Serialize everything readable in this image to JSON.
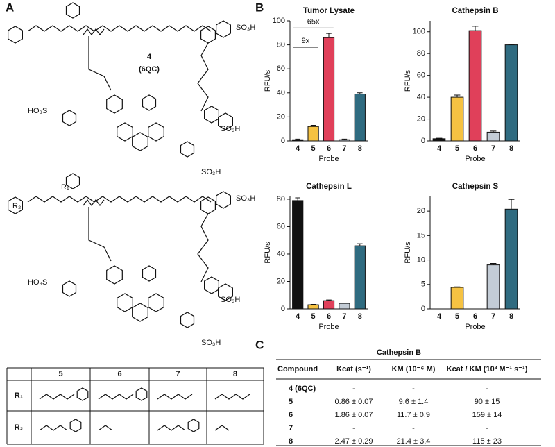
{
  "panels": {
    "a": "A",
    "b": "B",
    "c": "C"
  },
  "structures": {
    "compound": "4",
    "compound_name": "(6QC)",
    "top_labels": [
      "SO₃H",
      "SO₃H",
      "HO₃S",
      "SO₃H"
    ],
    "bottom_labels": [
      "R₂",
      "R₁",
      "SO₃H",
      "SO₃H",
      "HO₃S",
      "SO₃H"
    ]
  },
  "chart_data": [
    {
      "type": "bar",
      "title": "Tumor Lysate",
      "categories": [
        "4",
        "5",
        "6",
        "7",
        "8"
      ],
      "values": [
        1,
        12,
        86,
        1,
        39
      ],
      "errors": [
        0.5,
        1,
        3.5,
        0.5,
        1
      ],
      "colors": [
        "#111111",
        "#f5c242",
        "#e0405a",
        "#c3ccd6",
        "#2f6b80"
      ],
      "ylim": [
        0,
        100
      ],
      "yticks": [
        0,
        20,
        40,
        60,
        80,
        100
      ],
      "xlabel": "Probe",
      "ylabel": "RFU/s",
      "annotations": [
        "9x",
        "65x"
      ]
    },
    {
      "type": "bar",
      "title": "Cathepsin B",
      "categories": [
        "4",
        "5",
        "6",
        "7",
        "8"
      ],
      "values": [
        2,
        40,
        101,
        8,
        88
      ],
      "errors": [
        0.5,
        2,
        4,
        1,
        0.5
      ],
      "colors": [
        "#111111",
        "#f5c242",
        "#e0405a",
        "#c3ccd6",
        "#2f6b80"
      ],
      "ylim": [
        0,
        110
      ],
      "yticks": [
        0,
        20,
        40,
        60,
        80,
        100
      ],
      "xlabel": "Probe",
      "ylabel": "RFU/s"
    },
    {
      "type": "bar",
      "title": "Cathepsin L",
      "categories": [
        "4",
        "5",
        "6",
        "7",
        "8"
      ],
      "values": [
        79,
        3,
        6,
        4,
        46
      ],
      "errors": [
        2,
        0.3,
        0.5,
        0.3,
        1.5
      ],
      "colors": [
        "#111111",
        "#f5c242",
        "#e0405a",
        "#c3ccd6",
        "#2f6b80"
      ],
      "ylim": [
        0,
        82
      ],
      "yticks": [
        0,
        20,
        40,
        60,
        80
      ],
      "xlabel": "Probe",
      "ylabel": "RFU/s"
    },
    {
      "type": "bar",
      "title": "Cathepsin S",
      "categories": [
        "4",
        "5",
        "6",
        "7",
        "8"
      ],
      "values": [
        0,
        4.4,
        0,
        9,
        20.4
      ],
      "errors": [
        0,
        0.1,
        0,
        0.3,
        2
      ],
      "colors": [
        "#111111",
        "#f5c242",
        "#e0405a",
        "#c3ccd6",
        "#2f6b80"
      ],
      "ylim": [
        0,
        23
      ],
      "yticks": [
        0,
        5,
        10,
        15,
        20
      ],
      "xlabel": "Probe",
      "ylabel": "RFU/s"
    }
  ],
  "r_table": {
    "header": [
      "5",
      "6",
      "7",
      "8"
    ],
    "rows": [
      "R₁",
      "R₂"
    ]
  },
  "kinetics_table": {
    "title": "Cathepsin B",
    "headers": [
      "Compound",
      "Kcat (s⁻¹)",
      "KM (10⁻⁶ M)",
      "Kcat / KM (10³ M⁻¹ s⁻¹)"
    ],
    "rows": [
      [
        "4 (6QC)",
        "-",
        "-",
        "-"
      ],
      [
        "5",
        "0.86 ± 0.07",
        "9.6 ± 1.4",
        "90 ± 15"
      ],
      [
        "6",
        "1.86 ± 0.07",
        "11.7 ± 0.9",
        "159 ± 14"
      ],
      [
        "7",
        "-",
        "-",
        "-"
      ],
      [
        "8",
        "2.47 ± 0.29",
        "21.4 ± 3.4",
        "115 ± 23"
      ]
    ]
  }
}
